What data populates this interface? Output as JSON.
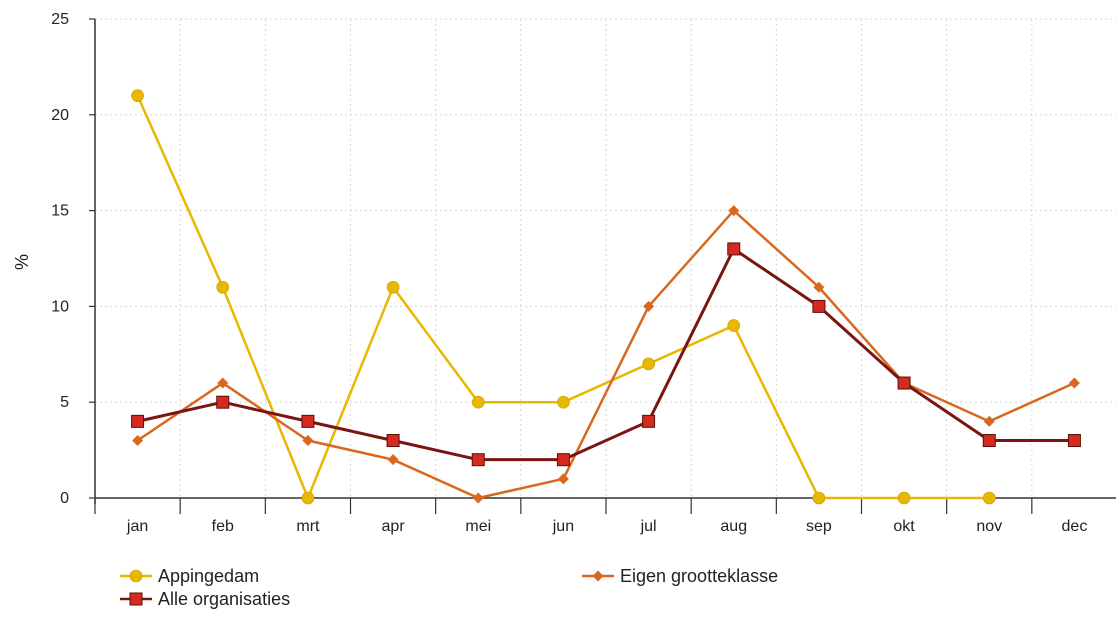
{
  "chart_data": {
    "type": "line",
    "ylabel": "%",
    "xlabel": "",
    "ylim": [
      0,
      25
    ],
    "yticks": [
      0,
      5,
      10,
      15,
      20,
      25
    ],
    "grid": true,
    "legend_position": "bottom-left",
    "categories": [
      "jan",
      "feb",
      "mrt",
      "apr",
      "mei",
      "jun",
      "jul",
      "aug",
      "sep",
      "okt",
      "nov",
      "dec"
    ],
    "series": [
      {
        "name": "Appingedam",
        "color": "#e8b800",
        "marker": "circle",
        "values": [
          21,
          11,
          0,
          11,
          5,
          5,
          7,
          9,
          0,
          0,
          0,
          null
        ]
      },
      {
        "name": "Eigen grootteklasse",
        "color": "#d9681e",
        "marker": "diamond",
        "values": [
          3,
          6,
          3,
          2,
          0,
          1,
          10,
          15,
          11,
          6,
          4,
          6
        ]
      },
      {
        "name": "Alle organisaties",
        "color": "#7a1512",
        "marker_color": "#d42a20",
        "marker": "square",
        "values": [
          4,
          5,
          4,
          3,
          2,
          2,
          4,
          13,
          10,
          6,
          3,
          3
        ]
      }
    ]
  }
}
